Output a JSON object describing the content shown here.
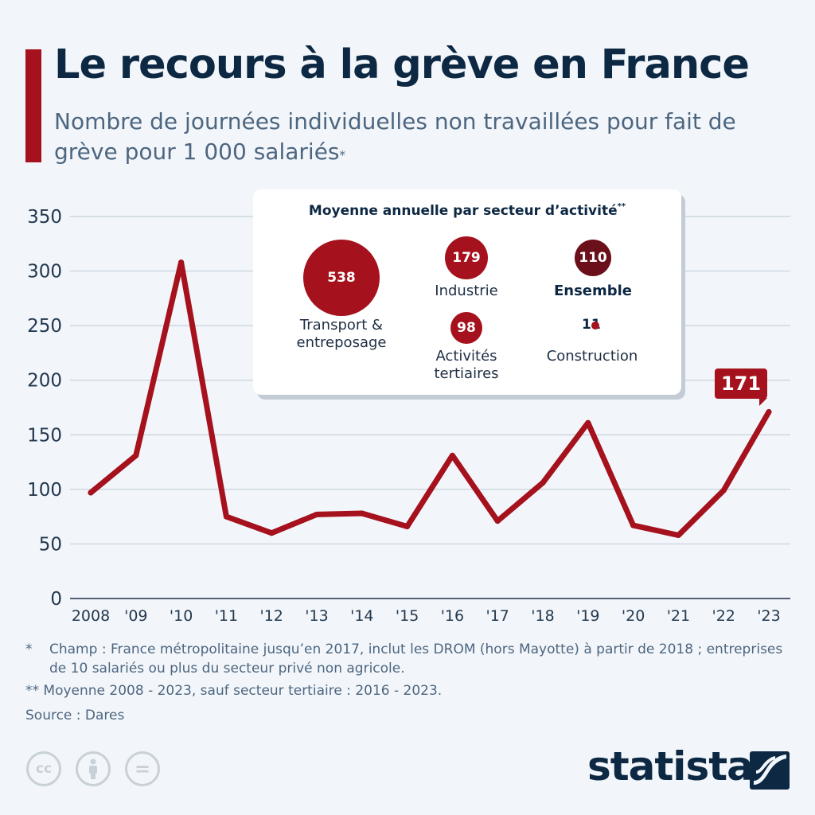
{
  "header": {
    "title": "Le recours à la grève en France",
    "subtitle": "Nombre de journées individuelles non travaillées pour fait de grève pour 1 000 salariés",
    "subtitle_marker": "*"
  },
  "chart_data": {
    "type": "line",
    "title": "Le recours à la grève en France",
    "subtitle": "Nombre de journées individuelles non travaillées pour fait de grève pour 1 000 salariés*",
    "x": [
      "2008",
      "'09",
      "'10",
      "'11",
      "'12",
      "'13",
      "'14",
      "'15",
      "'16",
      "'17",
      "'18",
      "'19",
      "'20",
      "'21",
      "'22",
      "'23"
    ],
    "series": [
      {
        "values": [
          97,
          131,
          308,
          75,
          60,
          77,
          78,
          66,
          131,
          71,
          106,
          161,
          67,
          58,
          99,
          171
        ]
      }
    ],
    "yticks": [
      0,
      50,
      100,
      150,
      200,
      250,
      300,
      350
    ],
    "ylim": [
      0,
      350
    ],
    "grid": true,
    "line_color": "#a5111c",
    "highlight": {
      "label": "'23",
      "value": "171"
    }
  },
  "legend": {
    "title": "Moyenne annuelle par secteur d’activité",
    "title_marker": "**",
    "sectors": [
      {
        "label": "Transport & entreposage",
        "value": "538",
        "color": "#a5111c"
      },
      {
        "label": "Industrie",
        "value": "179",
        "color": "#a5111c"
      },
      {
        "label": "Ensemble",
        "value": "110",
        "color": "#6b0f1a"
      },
      {
        "label": "Activités tertiaires",
        "value": "98",
        "color": "#a5111c"
      },
      {
        "label": "Construction",
        "value": "11",
        "color": "#a5111c"
      }
    ]
  },
  "footnotes": {
    "note1_mark": "*",
    "note1": "Champ : France métropolitaine jusqu’en 2017, inclut les DROM (hors Mayotte) à partir de 2018 ; entreprises de 10 salariés ou plus du secteur privé non agricole.",
    "note2": "** Moyenne 2008 - 2023, sauf secteur tertiaire : 2016 - 2023.",
    "source": "Source : Dares"
  },
  "license_icons": [
    {
      "name": "creative-commons-icon",
      "text": "cc"
    },
    {
      "name": "attribution-icon",
      "text": ""
    },
    {
      "name": "no-derivatives-icon",
      "text": "="
    }
  ],
  "brand": {
    "name": "statista",
    "accent_color": "#a5111c",
    "text_color": "#0d2843"
  }
}
